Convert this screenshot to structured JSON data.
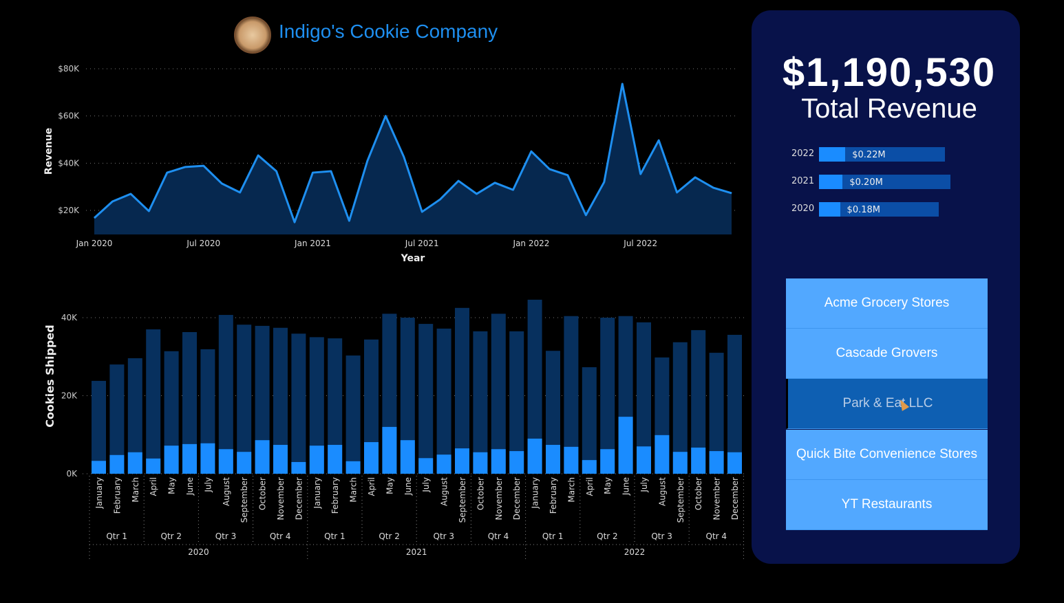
{
  "header": {
    "title": "Indigo's Cookie Company",
    "logo": "cookie-logo"
  },
  "kpi": {
    "value": "$1,190,530",
    "label": "Total Revenue"
  },
  "year_bars": [
    {
      "year": "2022",
      "label": "$0.22M",
      "total_fill": 0.96,
      "highlight_fill": 0.2
    },
    {
      "year": "2021",
      "label": "$0.20M",
      "total_fill": 1.0,
      "highlight_fill": 0.18
    },
    {
      "year": "2020",
      "label": "$0.18M",
      "total_fill": 0.91,
      "highlight_fill": 0.16
    }
  ],
  "slicer": {
    "items": [
      "Acme Grocery Stores",
      "Cascade Grovers",
      "Park & Eat LLC",
      "Quick Bite Convenience Stores",
      "YT Restaurants"
    ],
    "selected": "Park & Eat LLC"
  },
  "colors": {
    "line": "#1e8ff0",
    "area": "#06284f",
    "bar_total": "#07305e",
    "bar_highlight": "#1a8cff",
    "panel": "#08124a",
    "slicer": "#52a8ff",
    "slicer_selected": "#0e5fb2"
  },
  "chart_data": [
    {
      "type": "area",
      "xlabel": "Year",
      "ylabel": "Revenue",
      "ylim": [
        10000,
        80000
      ],
      "grid": true,
      "yticks": [
        "$20K",
        "$40K",
        "$60K",
        "$80K"
      ],
      "ytick_values": [
        20000,
        40000,
        60000,
        80000
      ],
      "xticks": [
        "Jan 2020",
        "Jul 2020",
        "Jan 2021",
        "Jul 2021",
        "Jan 2022",
        "Jul 2022"
      ],
      "x": [
        "2020-01",
        "2020-02",
        "2020-03",
        "2020-04",
        "2020-05",
        "2020-06",
        "2020-07",
        "2020-08",
        "2020-09",
        "2020-10",
        "2020-11",
        "2020-12",
        "2021-01",
        "2021-02",
        "2021-03",
        "2021-04",
        "2021-05",
        "2021-06",
        "2021-07",
        "2021-08",
        "2021-09",
        "2021-10",
        "2021-11",
        "2021-12",
        "2022-01",
        "2022-02",
        "2022-03",
        "2022-04",
        "2022-05",
        "2022-06",
        "2022-07",
        "2022-08",
        "2022-09",
        "2022-10",
        "2022-11",
        "2022-12"
      ],
      "values": [
        16800,
        23800,
        27000,
        19700,
        36000,
        38400,
        38900,
        31400,
        27600,
        43300,
        36600,
        15000,
        36000,
        36600,
        15600,
        41000,
        60000,
        42700,
        19400,
        24700,
        32500,
        27000,
        31700,
        28700,
        45000,
        37500,
        34900,
        18000,
        32000,
        73600,
        35400,
        49700,
        27600,
        34000,
        29600,
        27300
      ]
    },
    {
      "type": "bar",
      "ylabel": "Cookies Shipped",
      "ylim": [
        0,
        40000
      ],
      "grid": true,
      "yticks": [
        "0K",
        "20K",
        "40K"
      ],
      "ytick_values": [
        0,
        20000,
        40000
      ],
      "months": [
        "January",
        "February",
        "March",
        "April",
        "May",
        "June",
        "July",
        "August",
        "September",
        "October",
        "November",
        "December"
      ],
      "quarters": [
        "Qtr 1",
        "Qtr 2",
        "Qtr 3",
        "Qtr 4"
      ],
      "years": [
        "2020",
        "2021",
        "2022"
      ],
      "series": [
        {
          "values": [
            23800,
            28000,
            29600,
            37000,
            31400,
            36300,
            31900,
            40700,
            38200,
            37900,
            37400,
            35900,
            35000,
            34700,
            30300,
            34400,
            41000,
            40000,
            38400,
            37200,
            42500,
            36500,
            41000,
            36500,
            44600,
            31500,
            40400,
            27300,
            40000,
            40400,
            38800,
            29800,
            33700,
            36800,
            31000,
            35600
          ]
        },
        {
          "values": [
            3300,
            4800,
            5500,
            3900,
            7200,
            7600,
            7800,
            6300,
            5600,
            8600,
            7400,
            3000,
            7200,
            7400,
            3200,
            8100,
            12000,
            8600,
            4000,
            4900,
            6500,
            5500,
            6300,
            5800,
            9000,
            7400,
            6900,
            3500,
            6300,
            14600,
            7000,
            9900,
            5600,
            6700,
            5800,
            5500
          ]
        }
      ]
    }
  ]
}
